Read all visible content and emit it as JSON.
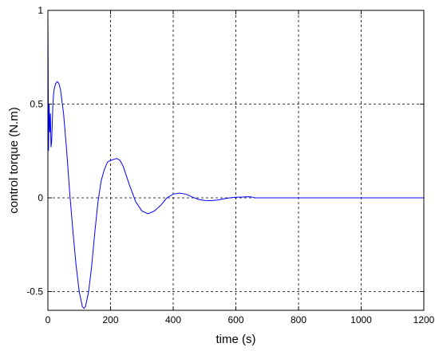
{
  "chart_data": {
    "type": "line",
    "xlabel": "time (s)",
    "ylabel": "control torque (N.m)",
    "x": [
      0,
      2,
      4,
      6,
      8,
      10,
      12,
      14,
      16,
      18,
      20,
      25,
      30,
      35,
      40,
      50,
      60,
      70,
      80,
      90,
      100,
      110,
      115,
      120,
      130,
      140,
      150,
      160,
      170,
      180,
      190,
      200,
      210,
      220,
      230,
      240,
      260,
      280,
      300,
      320,
      340,
      360,
      380,
      400,
      420,
      440,
      460,
      480,
      500,
      520,
      540,
      560,
      580,
      600,
      620,
      640,
      650,
      660,
      700,
      800,
      900,
      1000,
      1100,
      1200
    ],
    "values": [
      1,
      0.25,
      0.5,
      0.35,
      0.45,
      0.27,
      0.3,
      0.4,
      0.5,
      0.55,
      0.58,
      0.61,
      0.62,
      0.61,
      0.58,
      0.45,
      0.25,
      0.02,
      -0.18,
      -0.36,
      -0.5,
      -0.58,
      -0.59,
      -0.58,
      -0.5,
      -0.36,
      -0.18,
      -0.02,
      0.09,
      0.15,
      0.19,
      0.2,
      0.205,
      0.21,
      0.2,
      0.17,
      0.07,
      -0.02,
      -0.07,
      -0.085,
      -0.07,
      -0.04,
      0,
      0.02,
      0.025,
      0.02,
      0.005,
      -0.008,
      -0.014,
      -0.015,
      -0.012,
      -0.006,
      0,
      0.003,
      0.004,
      0.006,
      0.005,
      0,
      0,
      0,
      0,
      0,
      0,
      0
    ],
    "color": "#0000ff",
    "xlim": [
      0,
      1200
    ],
    "xticks": [
      0,
      200,
      400,
      600,
      800,
      1000,
      1200
    ],
    "ylim": [
      -0.6,
      1
    ],
    "yticks": [
      -0.5,
      0,
      0.5,
      1
    ],
    "grid": true
  }
}
